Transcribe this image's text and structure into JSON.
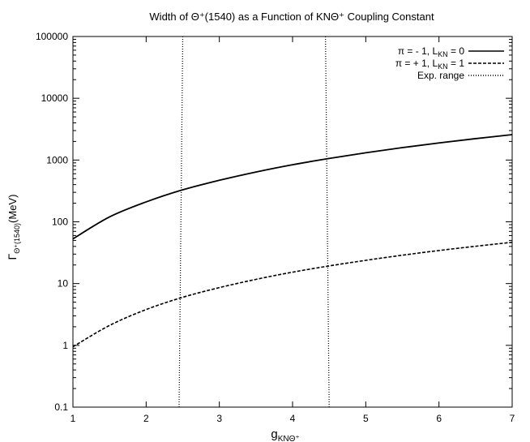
{
  "chart_data": {
    "type": "line",
    "title": "Width of Θ⁺(1540) as a Function of KNΘ⁺ Coupling Constant",
    "xlabel": "g",
    "xlabel_sub": "KNΘ⁺",
    "ylabel": "Γ",
    "ylabel_sub": "Θ⁺(1540)",
    "ylabel_tail": "(MeV)",
    "xlim": [
      1,
      7
    ],
    "ylim": [
      0.1,
      100000
    ],
    "y_scale": "log",
    "x_ticks": [
      "1",
      "2",
      "3",
      "4",
      "5",
      "6",
      "7"
    ],
    "y_ticks": [
      "0.1",
      "1",
      "10",
      "100",
      "1000",
      "10000",
      "100000"
    ],
    "legend_position": "top-right",
    "series": [
      {
        "name": "π = - 1, L_KN = 0",
        "legend": {
          "pre": "π = - 1, L",
          "sub": "KN",
          "post": " = 0"
        },
        "style": "solid",
        "x": [
          1.0,
          1.5,
          2.0,
          2.5,
          3.0,
          3.5,
          4.0,
          4.5,
          5.0,
          5.5,
          6.0,
          6.5,
          7.0
        ],
        "y": [
          53,
          120,
          210,
          330,
          470,
          640,
          840,
          1060,
          1310,
          1590,
          1890,
          2220,
          2580
        ]
      },
      {
        "name": "π = + 1, L_KN = 1",
        "legend": {
          "pre": "π = + 1, L",
          "sub": "KN",
          "post": " = 1"
        },
        "style": "dashed",
        "x": [
          1.0,
          1.5,
          2.0,
          2.5,
          3.0,
          3.5,
          4.0,
          4.5,
          5.0,
          5.5,
          6.0,
          6.5,
          7.0
        ],
        "y": [
          0.95,
          2.1,
          3.8,
          6.0,
          8.6,
          11.7,
          15.3,
          19.3,
          23.8,
          28.8,
          34.3,
          40.2,
          46.6
        ]
      },
      {
        "name": "Exp. range",
        "legend": {
          "pre": "Exp. range",
          "sub": "",
          "post": ""
        },
        "style": "dotted",
        "vertical_lines": [
          {
            "x_top": 2.5,
            "x_bottom": 2.45
          },
          {
            "x_top": 4.45,
            "x_bottom": 4.5
          }
        ]
      }
    ]
  }
}
